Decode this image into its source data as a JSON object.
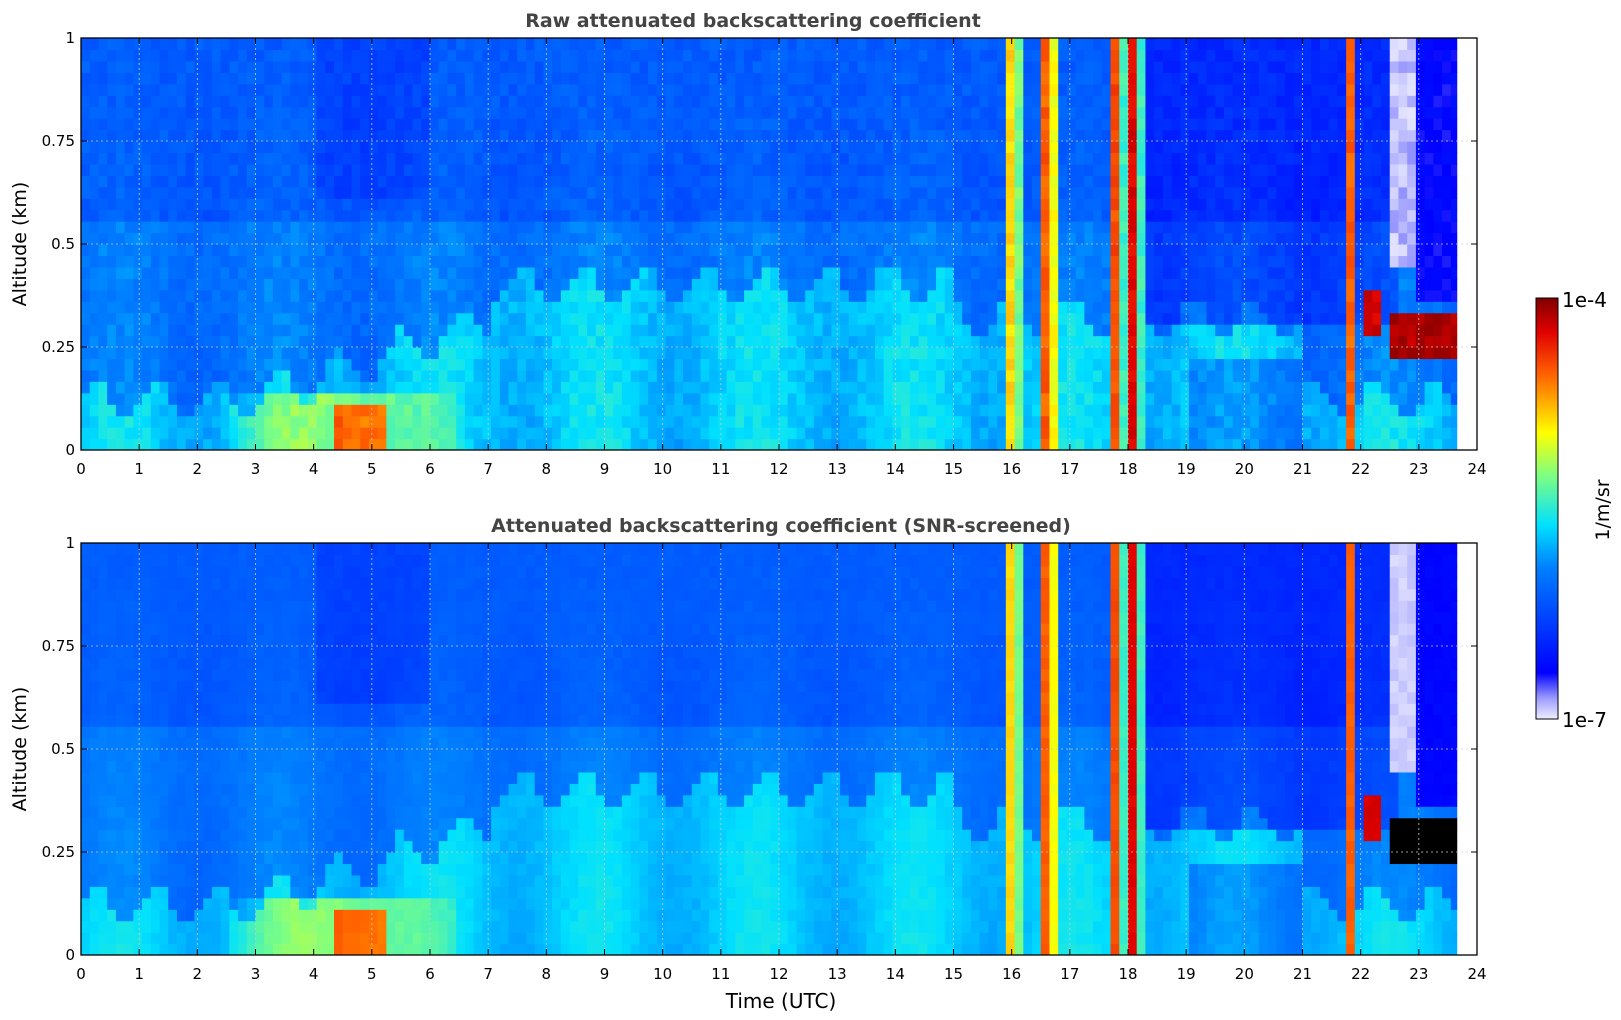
{
  "chart_data": [
    {
      "type": "heatmap",
      "title": "Raw attenuated backscattering coefficient",
      "xlabel": "",
      "ylabel": "Altitude (km)",
      "xlim": [
        0,
        24
      ],
      "ylim": [
        0,
        1
      ],
      "x_ticks": [
        "0",
        "1",
        "2",
        "3",
        "4",
        "5",
        "6",
        "7",
        "8",
        "9",
        "10",
        "11",
        "12",
        "13",
        "14",
        "15",
        "16",
        "17",
        "18",
        "19",
        "20",
        "21",
        "22",
        "23",
        "24"
      ],
      "y_ticks": [
        "0",
        "0.25",
        "0.5",
        "0.75",
        "1"
      ],
      "grid": true,
      "data_end_hour": 23.65,
      "colorscale": "jet (log)",
      "cloud_columns": [
        {
          "t0": 15.92,
          "t1": 16.15,
          "intensity": 1.0
        },
        {
          "t0": 16.45,
          "t1": 16.8,
          "intensity": 0.95
        },
        {
          "t0": 17.65,
          "t1": 17.85,
          "intensity": 0.95
        },
        {
          "t0": 17.9,
          "t1": 18.25,
          "intensity": 0.85
        },
        {
          "t0": 21.75,
          "t1": 21.95,
          "intensity": 0.9
        }
      ]
    },
    {
      "type": "heatmap",
      "title": "Attenuated backscattering coefficient (SNR-screened)",
      "xlabel": "Time (UTC)",
      "ylabel": "Altitude (km)",
      "xlim": [
        0,
        24
      ],
      "ylim": [
        0,
        1
      ],
      "x_ticks": [
        "0",
        "1",
        "2",
        "3",
        "4",
        "5",
        "6",
        "7",
        "8",
        "9",
        "10",
        "11",
        "12",
        "13",
        "14",
        "15",
        "16",
        "17",
        "18",
        "19",
        "20",
        "21",
        "22",
        "23",
        "24"
      ],
      "y_ticks": [
        "0",
        "0.25",
        "0.5",
        "0.75",
        "1"
      ],
      "grid": true,
      "data_end_hour": 23.65,
      "colorscale": "jet (log)",
      "cloud_columns": [
        {
          "t0": 15.92,
          "t1": 16.15,
          "intensity": 1.0
        },
        {
          "t0": 16.45,
          "t1": 16.8,
          "intensity": 0.95
        },
        {
          "t0": 17.65,
          "t1": 17.85,
          "intensity": 0.95
        },
        {
          "t0": 17.9,
          "t1": 18.25,
          "intensity": 0.85
        },
        {
          "t0": 21.75,
          "t1": 21.95,
          "intensity": 0.9
        }
      ]
    }
  ],
  "colorbar": {
    "label": "1/m/sr",
    "max_label": "1e-4",
    "min_label": "1e-7",
    "vmin": 1e-07,
    "vmax": 0.0001,
    "scale": "log"
  }
}
